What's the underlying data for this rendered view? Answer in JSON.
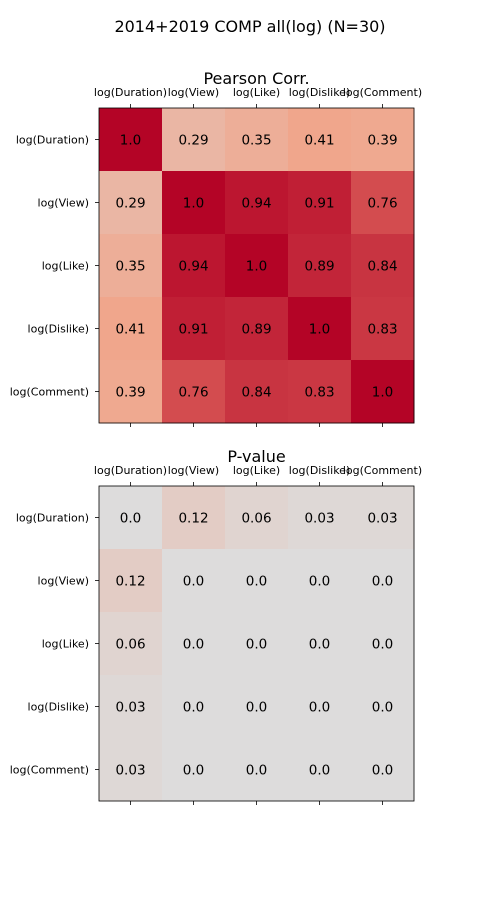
{
  "figure": {
    "title": "2014+2019 COMP all(log) (N=30)"
  },
  "chart_data": [
    {
      "type": "heatmap",
      "title": "Pearson Corr.",
      "labels": [
        "log(Duration)",
        "log(View)",
        "log(Like)",
        "log(Dislike)",
        "log(Comment)"
      ],
      "values": [
        [
          1.0,
          0.29,
          0.35,
          0.41,
          0.39
        ],
        [
          0.29,
          1.0,
          0.94,
          0.91,
          0.76
        ],
        [
          0.35,
          0.94,
          1.0,
          0.89,
          0.84
        ],
        [
          0.41,
          0.91,
          0.89,
          1.0,
          0.83
        ],
        [
          0.39,
          0.76,
          0.84,
          0.83,
          1.0
        ]
      ],
      "x_ticks_position": "top",
      "colormap": "coolwarm",
      "vrange": [
        -1,
        1
      ]
    },
    {
      "type": "heatmap",
      "title": "P-value",
      "labels": [
        "log(Duration)",
        "log(View)",
        "log(Like)",
        "log(Dislike)",
        "log(Comment)"
      ],
      "values": [
        [
          0.0,
          0.12,
          0.06,
          0.03,
          0.03
        ],
        [
          0.12,
          0.0,
          0.0,
          0.0,
          0.0
        ],
        [
          0.06,
          0.0,
          0.0,
          0.0,
          0.0
        ],
        [
          0.03,
          0.0,
          0.0,
          0.0,
          0.0
        ],
        [
          0.03,
          0.0,
          0.0,
          0.0,
          0.0
        ]
      ],
      "x_ticks_position": "top",
      "colormap": "coolwarm",
      "vrange": [
        -1,
        1
      ]
    }
  ]
}
